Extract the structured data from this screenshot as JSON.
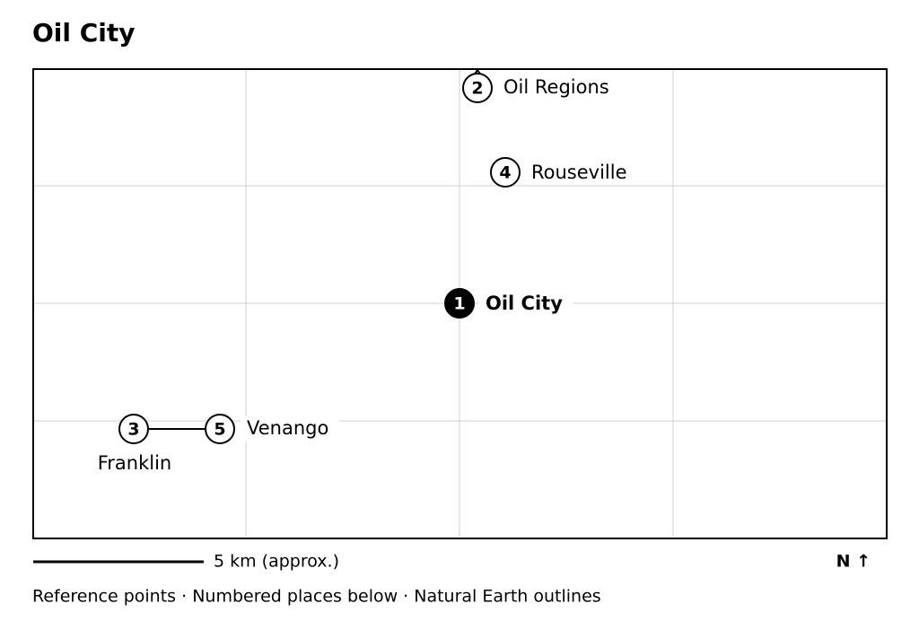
{
  "title": "Oil City",
  "places": [
    {
      "number": 1,
      "label": "Oil City"
    },
    {
      "number": 2,
      "label": "Oil Regions"
    },
    {
      "number": 3,
      "label": "Franklin"
    },
    {
      "number": 4,
      "label": "Rouseville"
    },
    {
      "number": 5,
      "label": "Venango"
    }
  ],
  "scale_label": "5 km (approx.)",
  "north_label": "N ↑",
  "footer": "Reference points · Numbered places below · Natural Earth outlines"
}
